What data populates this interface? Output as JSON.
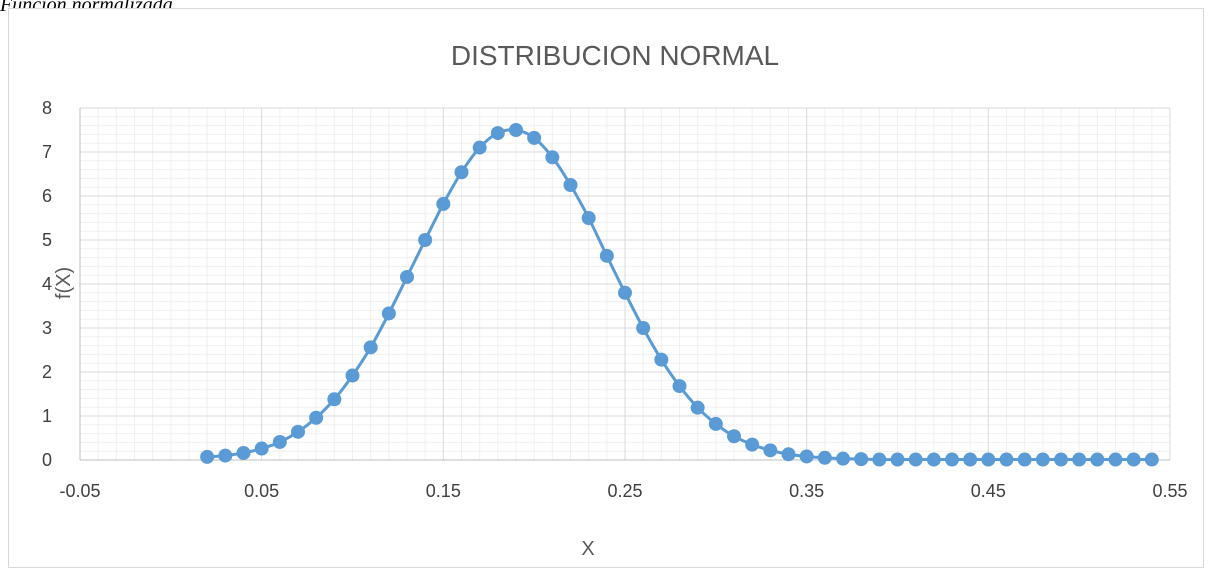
{
  "caption": "Función normalizada",
  "chart_data": {
    "type": "scatter",
    "title": "DISTRIBUCION NORMAL",
    "xlabel": "X",
    "ylabel": "f(X)",
    "xlim": [
      -0.05,
      0.55
    ],
    "ylim": [
      0,
      8
    ],
    "xticks": [
      "-0.05",
      "0.05",
      "0.15",
      "0.25",
      "0.35",
      "0.45",
      "0.55"
    ],
    "yticks": [
      "0",
      "1",
      "2",
      "3",
      "4",
      "5",
      "6",
      "7",
      "8"
    ],
    "grid": "major and minor",
    "legend": "none",
    "marker": "circle, connected by smooth line",
    "colors": {
      "series": "#5b9bd5",
      "major_grid": "#d9d9d9",
      "minor_grid": "#f0f0f0",
      "text": "#595959"
    },
    "series": [
      {
        "x": [
          0.02,
          0.03,
          0.04,
          0.05,
          0.06,
          0.07,
          0.08,
          0.09,
          0.1,
          0.11,
          0.12,
          0.13,
          0.14,
          0.15,
          0.16,
          0.17,
          0.18,
          0.19,
          0.2,
          0.21,
          0.22,
          0.23,
          0.24,
          0.25,
          0.26,
          0.27,
          0.28,
          0.29,
          0.3,
          0.31,
          0.32,
          0.33,
          0.34,
          0.35,
          0.36,
          0.37,
          0.38,
          0.39,
          0.4,
          0.41,
          0.42,
          0.43,
          0.44,
          0.45,
          0.46,
          0.47,
          0.48,
          0.49,
          0.5,
          0.51,
          0.52,
          0.53,
          0.54
        ],
        "y": [
          0.07,
          0.1,
          0.16,
          0.26,
          0.41,
          0.64,
          0.96,
          1.38,
          1.92,
          2.56,
          3.33,
          4.16,
          5.0,
          5.82,
          6.54,
          7.1,
          7.43,
          7.5,
          7.32,
          6.88,
          6.25,
          5.5,
          4.64,
          3.8,
          3.0,
          2.28,
          1.68,
          1.19,
          0.82,
          0.54,
          0.35,
          0.22,
          0.13,
          0.08,
          0.05,
          0.03,
          0.02,
          0.01,
          0.01,
          0.01,
          0.01,
          0.01,
          0.01,
          0.01,
          0.01,
          0.01,
          0.01,
          0.01,
          0.01,
          0.01,
          0.01,
          0.01,
          0.01
        ]
      }
    ]
  }
}
